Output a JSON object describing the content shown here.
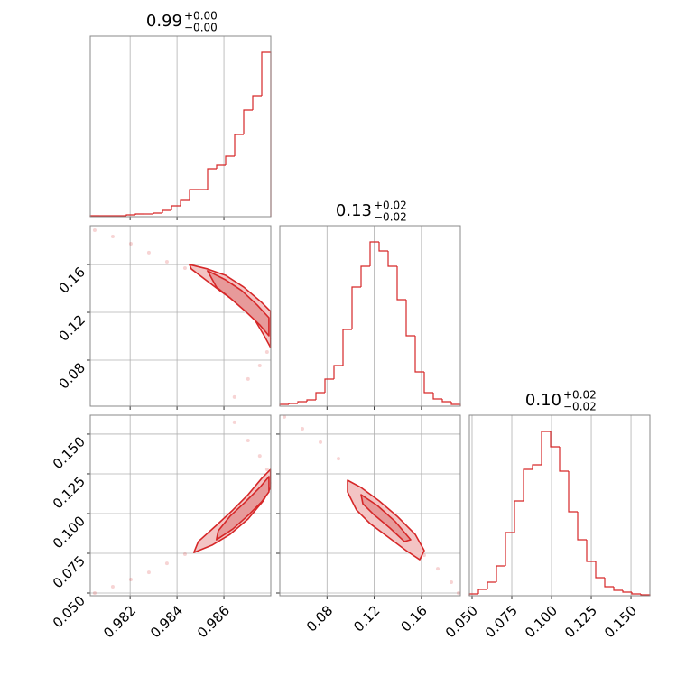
{
  "chart_data": [
    {
      "type": "histogram",
      "title": "0.99",
      "title_plus": "+0.00",
      "title_minus": "−0.00",
      "color": "#d62728",
      "bins": [
        0.9803,
        0.980685,
        0.98107,
        0.981455,
        0.98184,
        0.982225,
        0.98261,
        0.982995,
        0.98338,
        0.983765,
        0.98415,
        0.984535,
        0.98492,
        0.985305,
        0.98569,
        0.986075,
        0.98646,
        0.986845,
        0.98723,
        0.987615,
        0.988
      ],
      "values": [
        1,
        1,
        1,
        1,
        2,
        3,
        3,
        4,
        7,
        12,
        18,
        30,
        30,
        53,
        57,
        67,
        91,
        118,
        134,
        182
      ],
      "xlim": [
        0.9803,
        0.988
      ],
      "xticks": [
        0.982,
        0.984,
        0.986
      ],
      "ylim": [
        0,
        200
      ],
      "grid": true
    },
    {
      "type": "scatter",
      "color": "#d62728",
      "x": [
        0.98049,
        0.98126,
        0.98203,
        0.9828,
        0.98357,
        0.98434,
        0.98645,
        0.98703,
        0.98753,
        0.98784,
        0.98795
      ],
      "y": [
        0.1887,
        0.1834,
        0.1774,
        0.1699,
        0.1623,
        0.157,
        0.0491,
        0.0642,
        0.0755,
        0.0868,
        0.0982
      ],
      "contours": [
        {
          "x": [
            0.98453,
            0.9853,
            0.98607,
            0.98684,
            0.98761,
            0.98799,
            0.98799,
            0.98772,
            0.98722,
            0.98653,
            0.98588,
            0.98522,
            0.98461
          ],
          "y": [
            0.16,
            0.1563,
            0.151,
            0.1412,
            0.1283,
            0.1208,
            0.0906,
            0.1004,
            0.117,
            0.1283,
            0.1374,
            0.1472,
            0.1563
          ]
        },
        {
          "x": [
            0.9853,
            0.98607,
            0.98676,
            0.98742,
            0.98792,
            0.98792,
            0.98753,
            0.98692,
            0.98626,
            0.98568
          ],
          "y": [
            0.1548,
            0.1472,
            0.1382,
            0.1261,
            0.1155,
            0.1004,
            0.1095,
            0.1208,
            0.1321,
            0.1412
          ]
        }
      ],
      "xlim": [
        0.9803,
        0.988
      ],
      "xticks": [
        0.982,
        0.984,
        0.986
      ],
      "ylim": [
        0.0415,
        0.1925
      ],
      "yticks": [
        0.08,
        0.12,
        0.16
      ],
      "grid": true
    },
    {
      "type": "histogram",
      "title": "0.13",
      "title_plus": "+0.02",
      "title_minus": "−0.02",
      "color": "#d62728",
      "bins": [
        0.04,
        0.04765,
        0.0553,
        0.06295,
        0.0706,
        0.07825,
        0.0859,
        0.09355,
        0.1012,
        0.10885,
        0.1165,
        0.12415,
        0.1318,
        0.13945,
        0.1471,
        0.15475,
        0.1624,
        0.17005,
        0.1777,
        0.18535,
        0.193
      ],
      "values": [
        2,
        3,
        5,
        7,
        15,
        30,
        45,
        85,
        132,
        155,
        182,
        172,
        155,
        118,
        78,
        38,
        15,
        8,
        5,
        2
      ],
      "xlim": [
        0.04,
        0.193
      ],
      "xticks": [
        0.08,
        0.12,
        0.16
      ],
      "ylim": [
        0,
        200
      ],
      "grid": true
    },
    {
      "type": "scatter",
      "color": "#d62728",
      "x": [
        0.98049,
        0.98126,
        0.98203,
        0.9828,
        0.98357,
        0.98434,
        0.98645,
        0.98703,
        0.98753,
        0.98784,
        0.98795
      ],
      "y": [
        0.05,
        0.054,
        0.0585,
        0.063,
        0.0687,
        0.0744,
        0.1574,
        0.146,
        0.1363,
        0.1278,
        0.1193
      ],
      "contours": [
        {
          "x": [
            0.98472,
            0.98549,
            0.98626,
            0.98703,
            0.98768,
            0.98799,
            0.98799,
            0.98761,
            0.98703,
            0.98638,
            0.98568,
            0.98491
          ],
          "y": [
            0.0755,
            0.0801,
            0.0869,
            0.0966,
            0.108,
            0.1164,
            0.1278,
            0.1221,
            0.1119,
            0.1022,
            0.0926,
            0.0824
          ]
        },
        {
          "x": [
            0.98568,
            0.98638,
            0.98707,
            0.98761,
            0.98792,
            0.98792,
            0.98753,
            0.98692,
            0.98626,
            0.98576
          ],
          "y": [
            0.0835,
            0.0903,
            0.0994,
            0.1074,
            0.1136,
            0.1233,
            0.1164,
            0.1074,
            0.0983,
            0.0892
          ]
        }
      ],
      "xlim": [
        0.9803,
        0.988
      ],
      "xticks": [
        0.982,
        0.984,
        0.986
      ],
      "ylim": [
        0.0483,
        0.1619
      ],
      "yticks": [
        {
          "value": 0.05,
          "label": "0.050"
        },
        0.075,
        {
          "value": 0.1,
          "label": "0.100"
        },
        0.125,
        {
          "value": 0.15,
          "label": "0.150"
        }
      ],
      "grid": true
    },
    {
      "type": "scatter",
      "color": "#d62728",
      "x": [
        0.04383,
        0.05913,
        0.07443,
        0.08973,
        0.1624,
        0.17388,
        0.18535,
        0.1915
      ],
      "y": [
        0.1608,
        0.1534,
        0.1449,
        0.1346,
        0.0738,
        0.0653,
        0.0568,
        0.05
      ],
      "contours": [
        {
          "x": [
            0.09738,
            0.10885,
            0.12415,
            0.13945,
            0.15475,
            0.1624,
            0.15858,
            0.1471,
            0.1318,
            0.1165,
            0.10503,
            0.09738
          ],
          "y": [
            0.121,
            0.1164,
            0.108,
            0.0983,
            0.0869,
            0.0767,
            0.071,
            0.0767,
            0.0852,
            0.0937,
            0.1022,
            0.1136
          ]
        },
        {
          "x": [
            0.10885,
            0.12262,
            0.13792,
            0.15093,
            0.14557,
            0.13333,
            0.1196,
            0.11038
          ],
          "y": [
            0.1119,
            0.1051,
            0.0949,
            0.0835,
            0.0824,
            0.0909,
            0.0994,
            0.1062
          ]
        }
      ],
      "xlim": [
        0.04,
        0.193
      ],
      "xticks": [
        0.08,
        0.12,
        0.16
      ],
      "ylim": [
        0.0483,
        0.1619
      ],
      "yticks": [
        {
          "value": 0.05,
          "label": "0.050"
        },
        0.075,
        {
          "value": 0.1,
          "label": "0.100"
        },
        0.125,
        {
          "value": 0.15,
          "label": "0.150"
        }
      ],
      "grid": true
    },
    {
      "type": "histogram",
      "title": "0.10",
      "title_plus": "+0.02",
      "title_minus": "−0.02",
      "color": "#d62728",
      "bins": [
        0.0483,
        0.05398,
        0.05966,
        0.06534,
        0.07102,
        0.0767,
        0.08238,
        0.08806,
        0.09374,
        0.09942,
        0.1051,
        0.11078,
        0.11646,
        0.12214,
        0.12782,
        0.1335,
        0.13918,
        0.14486,
        0.15054,
        0.15622,
        0.1619
      ],
      "values": [
        2,
        7,
        15,
        33,
        70,
        105,
        140,
        145,
        182,
        165,
        138,
        93,
        62,
        38,
        20,
        10,
        6,
        4,
        2,
        1
      ],
      "xlim": [
        0.0483,
        0.1619
      ],
      "xticks": [
        {
          "value": 0.05,
          "label": "0.050"
        },
        0.075,
        {
          "value": 0.1,
          "label": "0.100"
        },
        0.125,
        {
          "value": 0.15,
          "label": "0.150"
        }
      ],
      "ylim": [
        0,
        200
      ],
      "grid": true
    }
  ]
}
